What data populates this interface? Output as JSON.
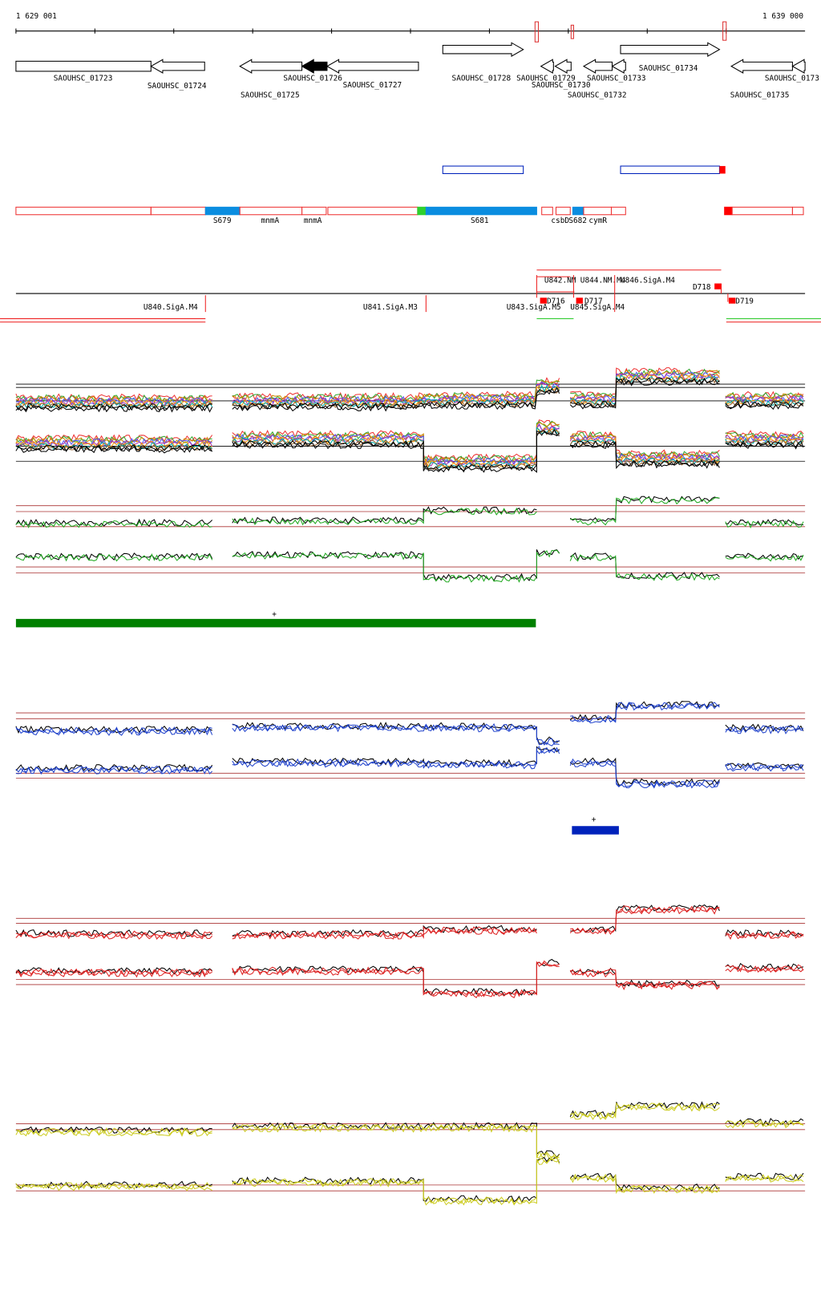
{
  "header": {
    "start": "1 629 001",
    "end": "1 639 000"
  },
  "genes": [
    "SAOUHSC_01723",
    "SAOUHSC_01724",
    "SAOUHSC_01725",
    "SAOUHSC_01726",
    "SAOUHSC_01727",
    "SAOUHSC_01728",
    "SAOUHSC_01729",
    "SAOUHSC_01730",
    "SAOUHSC_01732",
    "SAOUHSC_01733",
    "SAOUHSC_01734",
    "SAOUHSC_01735",
    "SAOUHSC_0173"
  ],
  "segments": [
    "S679",
    "mnmA",
    "mnmA",
    "S681",
    "csbD",
    "S682",
    "cymR"
  ],
  "promoters": [
    "U840.SigA.M4",
    "U841.SigA.M3",
    "U843.SigA.M5",
    "U842.NM",
    "U844.NM.M4",
    "U846.SigA.M4",
    "U845.SigA.M4",
    "D716",
    "D717",
    "D718",
    "D719"
  ],
  "markers": [
    "+",
    "+"
  ]
}
